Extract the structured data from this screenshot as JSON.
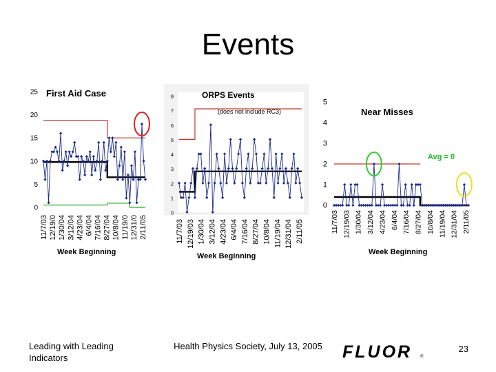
{
  "slide": {
    "title": "Events",
    "footer_left": "Leading with Leading Indicators",
    "footer_center": "Health Physics Society, July 13, 2005",
    "logo_text": "FLUOR",
    "logo_mark": "®",
    "page_number": "23"
  },
  "colors": {
    "series": "#1a2a8c",
    "trend": "#000000",
    "upper_limit": "#c0392b",
    "lower_limit": "#2ea82e",
    "avg_label": "#22bb22",
    "highlight_red": "#dd2222",
    "highlight_green": "#33cc33",
    "highlight_yellow": "#e8e020"
  },
  "chart_data": [
    {
      "type": "line",
      "title": "First Aid Case",
      "xlabel": "Week Beginning",
      "ylabel": "",
      "ylim": [
        0,
        25
      ],
      "yticks": [
        "0",
        "5",
        "10",
        "15",
        "20",
        "25"
      ],
      "x_tick_labels": [
        "11/7/03",
        "12/19/0",
        "1/30/04",
        "3/12/04",
        "4/23/04",
        "6/4/04",
        "7/16/04",
        "8/27/04",
        "10/8/04",
        "11/19/0",
        "12/31/0",
        "2/11/05"
      ],
      "values": [
        10,
        6,
        10,
        1,
        10,
        12,
        12,
        13,
        12,
        10,
        16,
        8,
        10,
        12,
        9,
        12,
        11,
        12,
        14,
        11,
        11,
        6,
        11,
        10,
        7,
        11,
        10,
        12,
        7,
        11,
        8,
        10,
        14,
        6,
        10,
        14,
        8,
        10,
        15,
        12,
        15,
        11,
        14,
        6,
        9,
        13,
        6,
        12,
        2,
        7,
        1,
        9,
        6,
        12,
        1,
        6,
        6,
        18,
        10,
        6
      ],
      "mean_segments": [
        {
          "from": 0,
          "to": 37,
          "value": 9.8
        },
        {
          "from": 37,
          "to": 59,
          "value": 6.5
        }
      ],
      "upper_limit_segments": [
        {
          "from": 0,
          "to": 37,
          "value": 18.8
        },
        {
          "from": 37,
          "to": 59,
          "value": 15
        }
      ],
      "lower_limit_segments": [
        {
          "from": 0,
          "to": 37,
          "value": 0.5
        },
        {
          "from": 37,
          "to": 50,
          "value": 0.9
        },
        {
          "from": 50,
          "to": 59,
          "value": 0
        }
      ],
      "highlight_point": 57,
      "highlight_color": "red"
    },
    {
      "type": "line",
      "title": "ORPS Events",
      "subtitle": "(does not include RC3)",
      "xlabel": "Week Beginning",
      "ylabel": "",
      "ylim": [
        0,
        8
      ],
      "yticks": [
        "0",
        "1",
        "2",
        "3",
        "4",
        "5",
        "6",
        "7",
        "8"
      ],
      "x_tick_labels": [
        "11/7/03",
        "12/19/03",
        "1/30/04",
        "3/12/04",
        "4/23/04",
        "6/4/04",
        "7/16/04",
        "8/27/04",
        "10/8/04",
        "11/19/04",
        "12/31/04",
        "2/11/05"
      ],
      "values": [
        2,
        1,
        1,
        2,
        0,
        1,
        2,
        3,
        1,
        3,
        4,
        4,
        2,
        3,
        1,
        2,
        6,
        0,
        2,
        4,
        3,
        2,
        1,
        4,
        2,
        3,
        5,
        3,
        2,
        3,
        4,
        5,
        2,
        1,
        3,
        4,
        2,
        3,
        5,
        4,
        2,
        2,
        3,
        4,
        2,
        3,
        5,
        3,
        1,
        4,
        2,
        3,
        4,
        2,
        3,
        2,
        1,
        3,
        4,
        2,
        3,
        2,
        1
      ],
      "mean_segments": [
        {
          "from": 0,
          "to": 8,
          "value": 1.4
        },
        {
          "from": 8,
          "to": 62,
          "value": 2.8
        }
      ],
      "upper_limit_segments": [
        {
          "from": 0,
          "to": 8,
          "value": 5
        },
        {
          "from": 8,
          "to": 62,
          "value": 7.1
        }
      ]
    },
    {
      "type": "line",
      "title": "Near Misses",
      "annotation": "Avg = 0",
      "xlabel": "Week Beginning",
      "ylabel": "",
      "ylim": [
        0,
        5
      ],
      "yticks": [
        "0",
        "1",
        "2",
        "3",
        "4",
        "5"
      ],
      "x_tick_labels": [
        "11/7/03",
        "12/19/03",
        "1/30/04",
        "3/12/04",
        "4/23/04",
        "6/4/04",
        "7/16/04",
        "8/27/04",
        "10/8/04",
        "11/19/04",
        "12/31/04",
        "2/11/05"
      ],
      "values": [
        0,
        0,
        0,
        0,
        0,
        1,
        0,
        0,
        1,
        0,
        1,
        1,
        0,
        0,
        0,
        0,
        0,
        0,
        0,
        2,
        0,
        0,
        0,
        1,
        0,
        0,
        0,
        0,
        0,
        0,
        0,
        2,
        0,
        0,
        1,
        0,
        0,
        1,
        0,
        1,
        1,
        1,
        0,
        0,
        0,
        0,
        0,
        0,
        0,
        0,
        0,
        0,
        0,
        0,
        0,
        0,
        0,
        0,
        0,
        0,
        0,
        0,
        1,
        0,
        0
      ],
      "mean_segments": [
        {
          "from": 0,
          "to": 41,
          "value": 0.4
        },
        {
          "from": 41,
          "to": 64,
          "value": 0
        }
      ],
      "upper_limit_segments": [
        {
          "from": 0,
          "to": 41,
          "value": 2
        }
      ],
      "highlight_points": [
        19,
        62
      ],
      "highlight_colors": [
        "green",
        "yellow"
      ]
    }
  ]
}
